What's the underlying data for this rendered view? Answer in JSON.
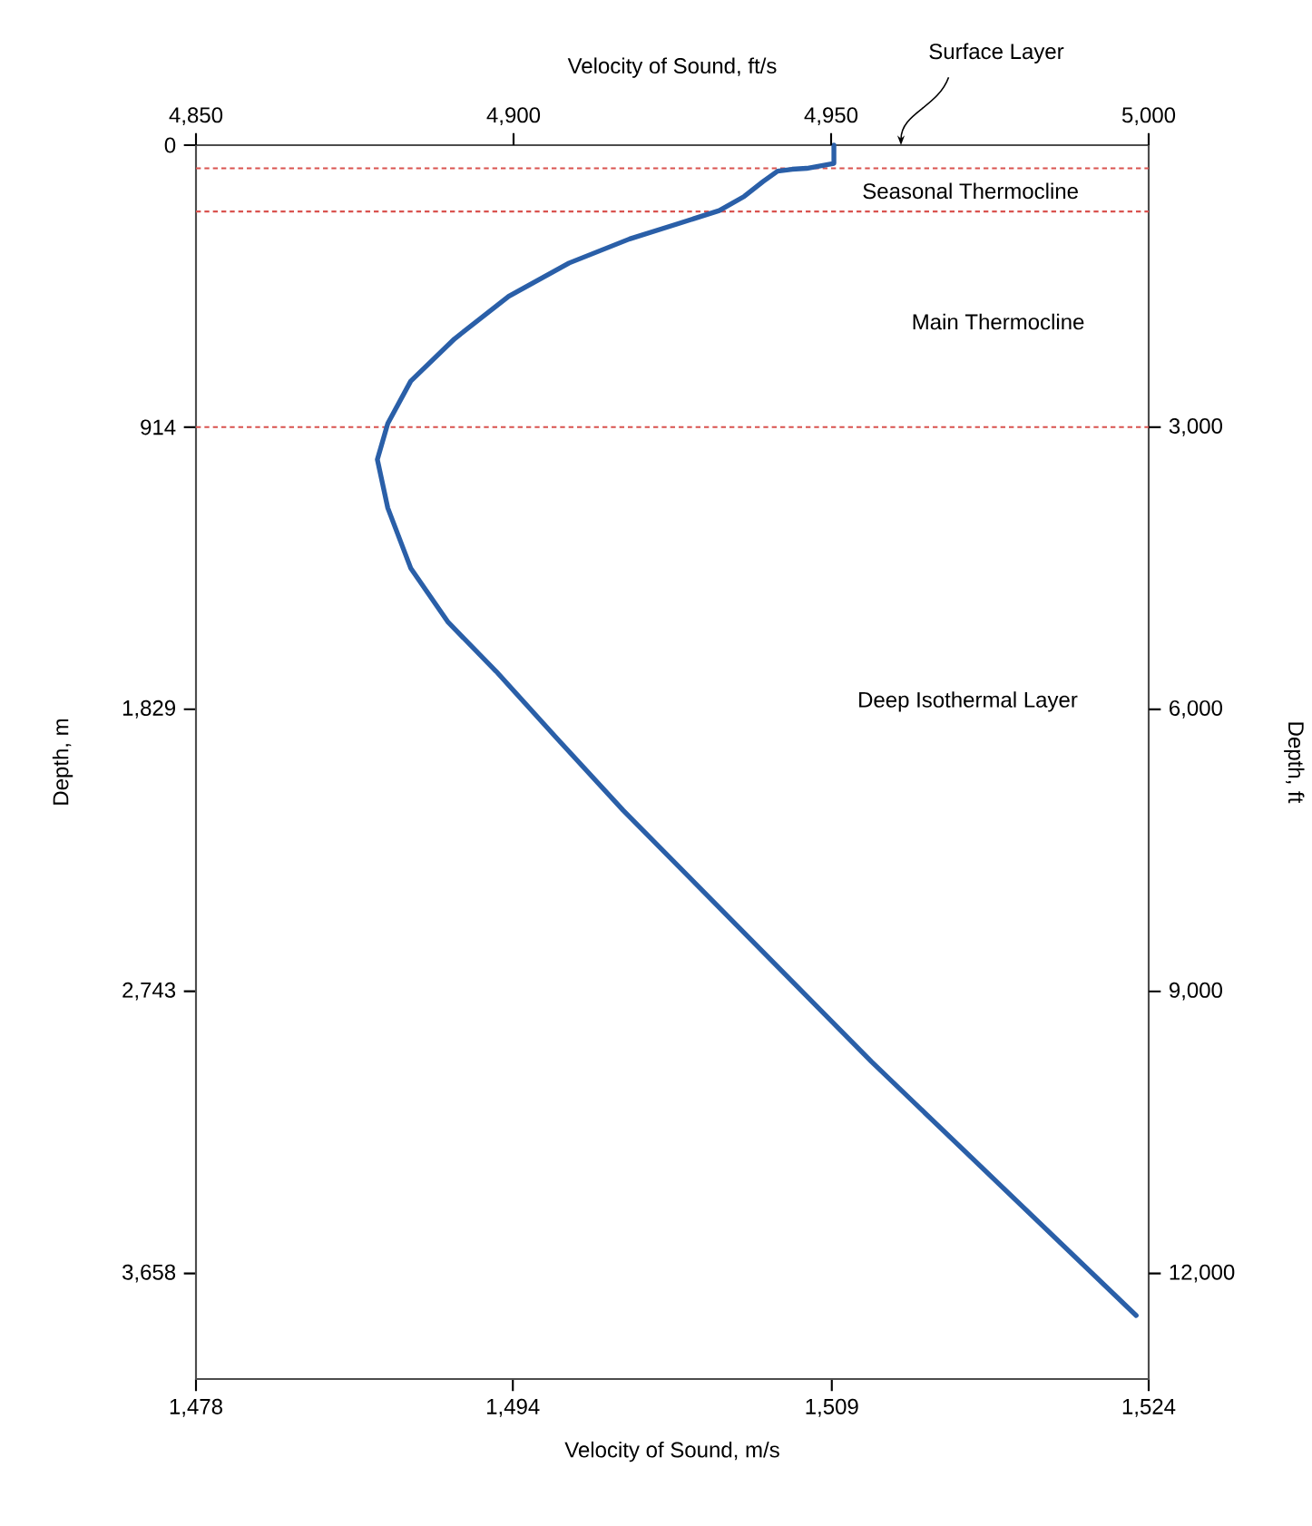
{
  "chart_data": {
    "type": "line",
    "xlabel": "Velocity of Sound, m/s",
    "x2label": "Velocity of Sound, ft/s",
    "ylabel": "Depth, m",
    "y2label": "Depth, ft",
    "x": [
      1508.9,
      1508.9,
      1507.6,
      1506.9,
      1506.2,
      1505.5,
      1504.6,
      1503.4,
      1501.4,
      1499.1,
      1496.2,
      1493.3,
      1490.7,
      1488.6,
      1487.5,
      1487.0,
      1487.5,
      1488.6,
      1490.4,
      1492.7,
      1495.6,
      1498.8,
      1510.7,
      1523.4
    ],
    "series": [
      {
        "color": "#2a5fa8",
        "values": [
          0,
          59,
          75,
          78,
          84,
          118,
          166,
          212,
          255,
          304,
          382,
          490,
          628,
          765,
          902,
          1019,
          1176,
          1371,
          1547,
          1706,
          1922,
          2157,
          2971,
          3794
        ]
      }
    ],
    "xlim": [
      1478.3,
      1524
    ],
    "xticks": [
      {
        "value": 1478.3,
        "label": "1,478"
      },
      {
        "value": 1493.5,
        "label": "1,494"
      },
      {
        "value": 1508.8,
        "label": "1,509"
      },
      {
        "value": 1524,
        "label": "1,524"
      }
    ],
    "x2lim": [
      4850,
      5000
    ],
    "x2ticks": [
      {
        "value": 4850,
        "label": "4,850"
      },
      {
        "value": 4900,
        "label": "4,900"
      },
      {
        "value": 4950,
        "label": "4,950"
      },
      {
        "value": 5000,
        "label": "5,000"
      }
    ],
    "ylim": [
      4000,
      0
    ],
    "yticks": [
      0,
      {
        "value": 914.4,
        "label": "914"
      },
      {
        "value": 1828.8,
        "label": "1,829"
      },
      {
        "value": 2743.2,
        "label": "2,743"
      },
      {
        "value": 3657.6,
        "label": "3,658"
      }
    ],
    "y2lim": [
      13123,
      0
    ],
    "y2ticks": [
      {
        "value": 3000,
        "label": "3,000"
      },
      {
        "value": 6000,
        "label": "6,000"
      },
      {
        "value": 9000,
        "label": "9,000"
      },
      {
        "value": 12000,
        "label": "12,000"
      }
    ],
    "ref_lines": [
      {
        "axis": "y",
        "value": 75,
        "color": "#d9534f",
        "line_style": "dashed"
      },
      {
        "axis": "y",
        "value": 215,
        "color": "#d9534f",
        "line_style": "dashed"
      },
      {
        "axis": "y",
        "value": 914,
        "color": "#d9534f",
        "line_style": "dashed"
      }
    ],
    "annotations": [
      "Surface Layer",
      "Seasonal Thermocline",
      "Main Thermocline",
      "Deep Isothermal Layer"
    ]
  }
}
